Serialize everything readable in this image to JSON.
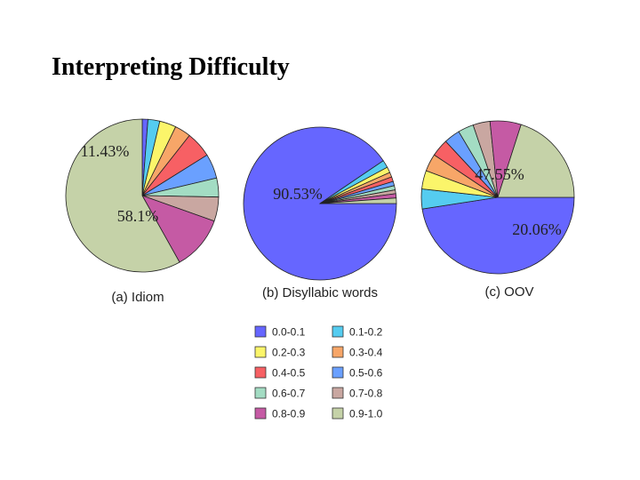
{
  "slide": {
    "title": "Interpreting Difficulty"
  },
  "chart_data": {
    "type": "pie",
    "legend": [
      {
        "label": "0.0-0.1",
        "color": "#6666ff"
      },
      {
        "label": "0.1-0.2",
        "color": "#55ccf0"
      },
      {
        "label": "0.2-0.3",
        "color": "#fbf56a"
      },
      {
        "label": "0.3-0.4",
        "color": "#f7a668"
      },
      {
        "label": "0.4-0.5",
        "color": "#f76064"
      },
      {
        "label": "0.5-0.6",
        "color": "#6aa0ff"
      },
      {
        "label": "0.6-0.7",
        "color": "#a3dcc3"
      },
      {
        "label": "0.7-0.8",
        "color": "#c9a7a1"
      },
      {
        "label": "0.8-0.9",
        "color": "#c55aa4"
      },
      {
        "label": "0.9-1.0",
        "color": "#c5d2a8"
      }
    ],
    "pies": [
      {
        "caption": "(a) Idiom",
        "values": [
          1.2,
          2.5,
          3.5,
          3.4,
          5.5,
          5.2,
          4.0,
          5.12,
          11.43,
          58.1
        ],
        "labels": [
          {
            "category": "0.8-0.9",
            "text": "11.43%"
          },
          {
            "category": "0.9-1.0",
            "text": "58.1%"
          }
        ]
      },
      {
        "caption": "(b) Disyllabic words",
        "values": [
          90.53,
          1.6,
          1.2,
          1.0,
          1.0,
          0.9,
          0.9,
          0.8,
          0.9,
          1.17
        ],
        "labels": [
          {
            "category": "0.0-0.1",
            "text": "90.53%"
          }
        ]
      },
      {
        "caption": "(c) OOV",
        "values": [
          47.55,
          4.2,
          3.9,
          3.7,
          3.7,
          3.4,
          3.3,
          3.6,
          6.56,
          20.06
        ],
        "labels": [
          {
            "category": "0.0-0.1",
            "text": "47.55%"
          },
          {
            "category": "0.9-1.0",
            "text": "20.06%"
          }
        ]
      }
    ]
  }
}
